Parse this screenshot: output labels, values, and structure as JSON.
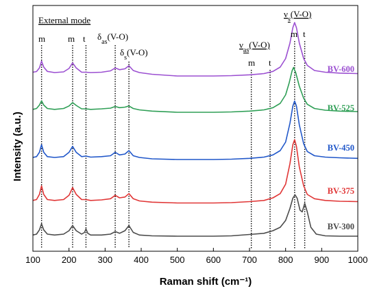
{
  "chart_data": {
    "type": "line",
    "xlabel": "Raman shift (cm⁻¹)",
    "ylabel": "Intensity (a.u.)",
    "xlim": [
      100,
      1000
    ],
    "xticks": [
      100,
      200,
      300,
      400,
      500,
      600,
      700,
      800,
      900,
      1000
    ],
    "xtick_labels": [
      "100",
      "200",
      "300",
      "400",
      "500",
      "600",
      "700",
      "800",
      "900",
      "1000"
    ],
    "y_ticks_shown": false,
    "grid": false,
    "note": "",
    "peak_lines": [
      124,
      210,
      247,
      328,
      366,
      705,
      757,
      825,
      853
    ],
    "annotations": {
      "external_mode": "External mode",
      "nu_s_main": "ν",
      "nu_s_sub": "s",
      "nu_s_rest": "(V-O)",
      "nu_as_main": "ν",
      "nu_as_sub": "as",
      "nu_as_rest": "(V-O)",
      "delta_as_main": "δ",
      "delta_as_sub": "as",
      "delta_as_rest": "(V-O)",
      "delta_s_main": "δ",
      "delta_s_sub": "s",
      "delta_s_rest": "(V-O)",
      "m1": "m",
      "m2": "m",
      "t1": "t",
      "m3": "m",
      "t2": "t",
      "m4": "m",
      "t3": "t"
    },
    "series": [
      {
        "name": "BV-600",
        "color": "#9b4fd1",
        "x": [
          100,
          110,
          118,
          124,
          130,
          140,
          160,
          185,
          200,
          210,
          220,
          235,
          247,
          260,
          290,
          315,
          328,
          340,
          355,
          366,
          378,
          395,
          430,
          500,
          600,
          650,
          700,
          740,
          765,
          785,
          800,
          812,
          820,
          825,
          830,
          838,
          850,
          860,
          880,
          910,
          950,
          1000
        ],
        "intensity": [
          0.03,
          0.034,
          0.055,
          0.095,
          0.06,
          0.035,
          0.028,
          0.032,
          0.052,
          0.085,
          0.055,
          0.03,
          0.03,
          0.028,
          0.03,
          0.038,
          0.055,
          0.045,
          0.05,
          0.068,
          0.04,
          0.028,
          0.018,
          0.008,
          0.008,
          0.01,
          0.015,
          0.022,
          0.035,
          0.06,
          0.11,
          0.2,
          0.29,
          0.32,
          0.29,
          0.2,
          0.11,
          0.07,
          0.04,
          0.03,
          0.025,
          0.022
        ]
      },
      {
        "name": "BV-525",
        "color": "#2e9e55",
        "x": [
          100,
          110,
          118,
          124,
          130,
          140,
          160,
          185,
          200,
          210,
          220,
          235,
          247,
          260,
          290,
          315,
          328,
          340,
          355,
          366,
          378,
          395,
          430,
          500,
          600,
          650,
          700,
          740,
          765,
          785,
          800,
          810,
          818,
          822,
          828,
          838,
          850,
          860,
          880,
          910,
          950,
          1000
        ],
        "intensity": [
          0.025,
          0.03,
          0.05,
          0.075,
          0.05,
          0.03,
          0.025,
          0.03,
          0.045,
          0.065,
          0.048,
          0.028,
          0.028,
          0.025,
          0.028,
          0.032,
          0.042,
          0.035,
          0.038,
          0.045,
          0.03,
          0.022,
          0.015,
          0.008,
          0.008,
          0.01,
          0.015,
          0.022,
          0.035,
          0.06,
          0.11,
          0.18,
          0.25,
          0.27,
          0.24,
          0.16,
          0.09,
          0.055,
          0.03,
          0.02,
          0.015,
          0.012
        ]
      },
      {
        "name": "BV-450",
        "color": "#1f56c9",
        "x": [
          100,
          110,
          118,
          124,
          130,
          140,
          160,
          185,
          200,
          210,
          220,
          235,
          247,
          260,
          290,
          315,
          328,
          340,
          355,
          366,
          378,
          395,
          430,
          500,
          600,
          650,
          700,
          740,
          765,
          785,
          800,
          812,
          820,
          825,
          830,
          838,
          850,
          860,
          880,
          910,
          950,
          1000
        ],
        "intensity": [
          0.02,
          0.025,
          0.05,
          0.095,
          0.05,
          0.025,
          0.02,
          0.025,
          0.05,
          0.085,
          0.05,
          0.025,
          0.028,
          0.022,
          0.025,
          0.03,
          0.05,
          0.035,
          0.04,
          0.06,
          0.03,
          0.02,
          0.012,
          0.008,
          0.008,
          0.01,
          0.015,
          0.022,
          0.035,
          0.06,
          0.11,
          0.22,
          0.32,
          0.35,
          0.32,
          0.21,
          0.1,
          0.055,
          0.03,
          0.022,
          0.018,
          0.015
        ]
      },
      {
        "name": "BV-375",
        "color": "#e03535",
        "x": [
          100,
          110,
          118,
          124,
          130,
          140,
          160,
          185,
          200,
          210,
          220,
          235,
          247,
          260,
          290,
          315,
          328,
          340,
          355,
          366,
          378,
          395,
          430,
          500,
          600,
          650,
          700,
          740,
          765,
          785,
          800,
          812,
          820,
          825,
          830,
          838,
          850,
          860,
          880,
          910,
          950,
          1000
        ],
        "intensity": [
          0.025,
          0.03,
          0.06,
          0.11,
          0.06,
          0.03,
          0.025,
          0.03,
          0.055,
          0.1,
          0.06,
          0.03,
          0.03,
          0.025,
          0.028,
          0.035,
          0.055,
          0.04,
          0.045,
          0.065,
          0.035,
          0.022,
          0.015,
          0.01,
          0.01,
          0.012,
          0.018,
          0.025,
          0.04,
          0.065,
          0.12,
          0.24,
          0.35,
          0.38,
          0.34,
          0.22,
          0.11,
          0.06,
          0.035,
          0.025,
          0.02,
          0.018
        ]
      },
      {
        "name": "BV-300",
        "color": "#4a4a4a",
        "x": [
          100,
          110,
          118,
          124,
          130,
          140,
          160,
          185,
          200,
          210,
          220,
          235,
          243,
          247,
          252,
          260,
          290,
          315,
          328,
          340,
          355,
          366,
          378,
          395,
          430,
          500,
          600,
          650,
          700,
          740,
          765,
          785,
          800,
          812,
          820,
          826,
          832,
          840,
          846,
          853,
          860,
          870,
          885,
          910,
          950,
          1000
        ],
        "intensity": [
          0.015,
          0.02,
          0.045,
          0.08,
          0.045,
          0.02,
          0.015,
          0.02,
          0.04,
          0.07,
          0.04,
          0.02,
          0.03,
          0.05,
          0.025,
          0.015,
          0.015,
          0.02,
          0.035,
          0.025,
          0.04,
          0.07,
          0.03,
          0.015,
          0.01,
          0.008,
          0.008,
          0.01,
          0.018,
          0.025,
          0.04,
          0.06,
          0.1,
          0.17,
          0.23,
          0.25,
          0.23,
          0.16,
          0.15,
          0.2,
          0.15,
          0.06,
          0.02,
          0.01,
          0.008,
          0.008
        ]
      }
    ]
  }
}
